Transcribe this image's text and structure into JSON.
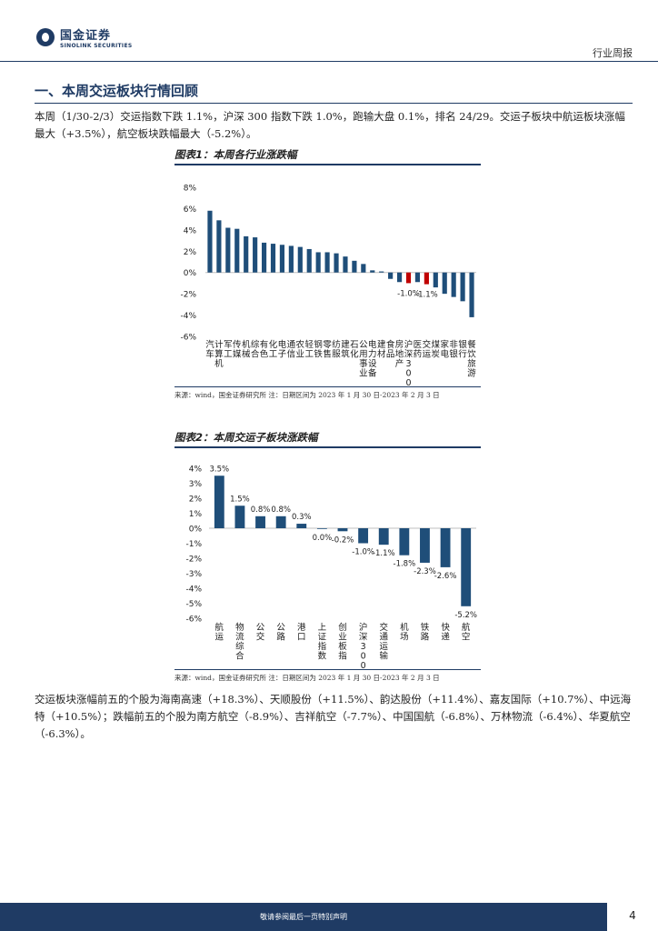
{
  "header": {
    "logo_cn": "国金证券",
    "logo_en": "SINOLINK SECURITIES",
    "report_type": "行业周报"
  },
  "section": {
    "title": "一、本周交运板块行情回顾"
  },
  "paragraphs": {
    "intro": "本周（1/30-2/3）交运指数下跌 1.1%，沪深 300 指数下跌 1.0%，跑输大盘 0.1%，排名 24/29。交运子板块中航运板块涨幅最大（+3.5%），航空板块跌幅最大（-5.2%）。",
    "stocks": "交运板块涨幅前五的个股为海南高速（+18.3%）、天顺股份（+11.5%）、韵达股份（+11.4%）、嘉友国际（+10.7%）、中远海特（+10.5%）；跌幅前五的个股为南方航空（-8.9%）、吉祥航空（-7.7%）、中国国航（-6.8%）、万林物流（-6.4%）、华夏航空（-6.3%）。"
  },
  "figure1": {
    "title": "图表1：本周各行业涨跌幅",
    "source": "来源：wind，国金证券研究所    注：日期区间为 2023 年 1 月 30 日-2023 年 2 月 3 日"
  },
  "figure2": {
    "title": "图表2：本周交运子板块涨跌幅",
    "source": "来源：wind，国金证券研究所    注：日期区间为 2023 年 1 月 30 日-2023 年 2 月 3 日"
  },
  "chart_data": [
    {
      "type": "bar",
      "title": "本周各行业涨跌幅",
      "categories": [
        "汽车",
        "计算机",
        "军工",
        "传媒",
        "机械",
        "综合",
        "有色",
        "化工",
        "电子",
        "通信",
        "农业",
        "轻工",
        "钢铁",
        "零售",
        "纺服",
        "建筑",
        "石化",
        "公用事业",
        "电力设备",
        "建材",
        "食品",
        "房地产",
        "沪深300",
        "医药",
        "交运",
        "煤炭",
        "家电",
        "非银",
        "银行",
        "餐饮旅游"
      ],
      "values": [
        5.8,
        4.9,
        4.2,
        4.1,
        3.4,
        3.3,
        2.8,
        2.7,
        2.6,
        2.5,
        2.4,
        2.2,
        1.9,
        1.9,
        1.8,
        1.5,
        1.1,
        0.8,
        0.2,
        0.1,
        -0.6,
        -0.9,
        -1.0,
        -0.9,
        -1.1,
        -1.4,
        -2.0,
        -2.3,
        -2.7,
        -4.2
      ],
      "highlight": [
        "沪深300",
        "交运"
      ],
      "data_labels": {
        "沪深300": "-1.0%",
        "交运": "-1.1%"
      },
      "ylim": [
        -6,
        8
      ],
      "yticks": [
        "8%",
        "6%",
        "4%",
        "2%",
        "0%",
        "-2%",
        "-4%",
        "-6%"
      ],
      "xlabel": "",
      "ylabel": "",
      "colors": {
        "default": "#1f4e79",
        "highlight": "#c00000"
      }
    },
    {
      "type": "bar",
      "title": "本周交运子板块涨跌幅",
      "categories": [
        "航运",
        "物流综合",
        "公交",
        "公路",
        "港口",
        "上证指数",
        "创业板指",
        "沪深300",
        "交通运输",
        "机场",
        "铁路",
        "快递",
        "航空"
      ],
      "values": [
        3.5,
        1.5,
        0.8,
        0.8,
        0.3,
        0.0,
        -0.2,
        -1.0,
        -1.1,
        -1.8,
        -2.3,
        -2.6,
        -5.2
      ],
      "labels": [
        "3.5%",
        "1.5%",
        "0.8%",
        "0.8%",
        "0.3%",
        "0.0%",
        "-0.2%",
        "-1.0%",
        "-1.1%",
        "-1.8%",
        "-2.3%",
        "-2.6%",
        "-5.2%"
      ],
      "ylim": [
        -6,
        4
      ],
      "yticks": [
        "4%",
        "3%",
        "2%",
        "1%",
        "0%",
        "-1%",
        "-2%",
        "-3%",
        "-4%",
        "-5%",
        "-6%"
      ],
      "xlabel": "",
      "ylabel": "",
      "colors": {
        "default": "#1f4e79"
      }
    }
  ],
  "footer": {
    "disclaimer": "敬请参阅最后一页特别声明",
    "page": "4"
  }
}
